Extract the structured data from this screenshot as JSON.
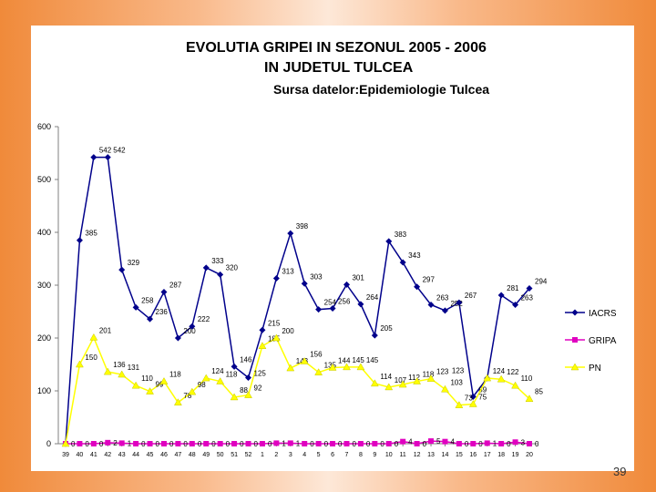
{
  "slide": {
    "page_number": "39"
  },
  "chart_data": {
    "type": "line",
    "title": "EVOLUTIA GRIPEI IN SEZONUL 2005 - 2006",
    "subtitle": "IN JUDETUL TULCEA",
    "source": "Sursa datelor:Epidemiologie Tulcea",
    "ylim": [
      0,
      600
    ],
    "yticks": [
      "0",
      "100",
      "200",
      "300",
      "400",
      "500",
      "600"
    ],
    "grid": false,
    "legend_position": "right",
    "categories": [
      "39",
      "40",
      "41",
      "42",
      "43",
      "44",
      "45",
      "46",
      "47",
      "48",
      "49",
      "50",
      "51",
      "52",
      "1",
      "2",
      "3",
      "4",
      "5",
      "6",
      "7",
      "8",
      "9",
      "10",
      "11",
      "12",
      "13",
      "14",
      "15",
      "16",
      "17",
      "18",
      "19",
      "20"
    ],
    "series": [
      {
        "name": "IACRS",
        "color": "#00008b",
        "marker": "diamond",
        "values": [
          0,
          385,
          542,
          542,
          329,
          258,
          236,
          287,
          200,
          222,
          333,
          320,
          146,
          125,
          215,
          313,
          398,
          303,
          254,
          256,
          301,
          264,
          205,
          383,
          343,
          297,
          263,
          252,
          267,
          89,
          124,
          281,
          263,
          294
        ],
        "labels": [
          "",
          "385",
          "542",
          "542",
          "329",
          "258",
          "236",
          "287",
          "200",
          "222",
          "333",
          "320",
          "146",
          "",
          "215",
          "313",
          "398",
          "303",
          "254",
          "256",
          "301",
          "264",
          "205",
          "383",
          "343",
          "297",
          "263",
          "252",
          "267",
          "89",
          "",
          "281",
          "263",
          "294"
        ]
      },
      {
        "name": "GRIPA",
        "color": "#e000c0",
        "marker": "square",
        "values": [
          0,
          0,
          0,
          2,
          1,
          0,
          0,
          0,
          0,
          0,
          0,
          0,
          0,
          0,
          0,
          1,
          1,
          0,
          0,
          0,
          0,
          0,
          0,
          0,
          4,
          0,
          5,
          4,
          0,
          0,
          1,
          0,
          3,
          0
        ],
        "labels": [
          "0",
          "0",
          "0",
          "2",
          "1",
          "0",
          "0",
          "0",
          "0",
          "0",
          "0",
          "0",
          "0",
          "0",
          "0",
          "1",
          "1",
          "0",
          "0",
          "0",
          "0",
          "0",
          "0",
          "0",
          "4",
          "0",
          "5",
          "4",
          "0",
          "0",
          "1",
          "0",
          "3",
          "0"
        ]
      },
      {
        "name": "PN",
        "color": "#ffff00",
        "marker": "triangle",
        "values": [
          0,
          150,
          201,
          136,
          131,
          110,
          99,
          118,
          78,
          98,
          124,
          118,
          88,
          92,
          185,
          200,
          143,
          156,
          135,
          144,
          145,
          145,
          114,
          107,
          112,
          118,
          123,
          103,
          73,
          75,
          124,
          122,
          110,
          85
        ],
        "labels": [
          "",
          "150",
          "201",
          "136",
          "131",
          "110",
          "99",
          "118",
          "78",
          "98",
          "124",
          "118",
          "88",
          "92",
          "185",
          "200",
          "143",
          "156",
          "135",
          "144",
          "145",
          "145",
          "114",
          "107",
          "112",
          "118",
          "123",
          "103",
          "73",
          "75",
          "124",
          "122",
          "110",
          "85"
        ]
      }
    ],
    "extra_labels": [
      "125",
      "123"
    ]
  }
}
